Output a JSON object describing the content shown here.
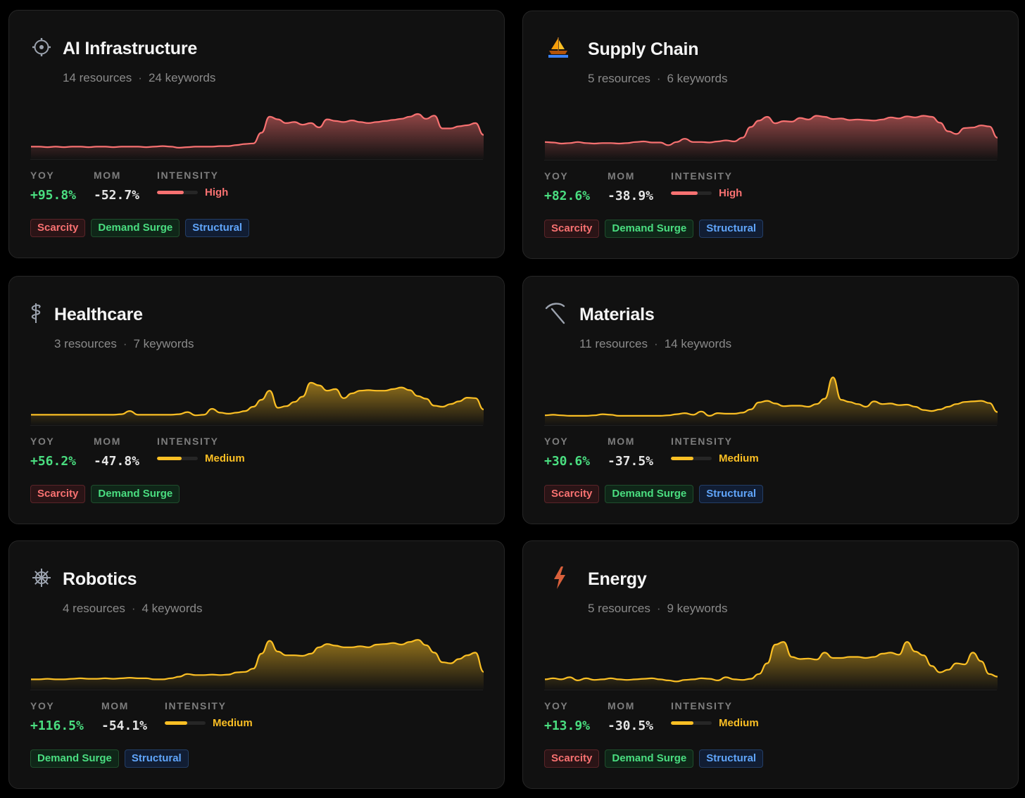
{
  "colors": {
    "high": "#f87171",
    "medium": "#fbbf24",
    "positive": "#4ade80"
  },
  "cards": [
    {
      "title": "AI Infrastructure",
      "icon": "gear-icon",
      "resources": "14 resources",
      "keywords": "24 keywords",
      "yoy_label": "YOY",
      "yoy": "+95.8%",
      "mom_label": "MOM",
      "mom": "-52.7%",
      "intensity_label": "INTENSITY",
      "intensity": "High",
      "intensity_level": 0.65,
      "tags": [
        "Scarcity",
        "Demand Surge",
        "Structural"
      ],
      "trend": [
        0.14,
        0.14,
        0.13,
        0.14,
        0.13,
        0.14,
        0.14,
        0.13,
        0.14,
        0.14,
        0.13,
        0.14,
        0.14,
        0.14,
        0.13,
        0.14,
        0.15,
        0.14,
        0.12,
        0.13,
        0.14,
        0.14,
        0.14,
        0.15,
        0.15,
        0.17,
        0.19,
        0.2,
        0.4,
        0.7,
        0.65,
        0.58,
        0.6,
        0.55,
        0.58,
        0.5,
        0.65,
        0.62,
        0.6,
        0.63,
        0.6,
        0.58,
        0.6,
        0.62,
        0.64,
        0.66,
        0.7,
        0.75,
        0.66,
        0.72,
        0.48,
        0.48,
        0.52,
        0.54,
        0.58,
        0.36
      ]
    },
    {
      "title": "Supply Chain",
      "icon": "sailboat-icon",
      "resources": "5 resources",
      "keywords": "6 keywords",
      "yoy_label": "YOY",
      "yoy": "+82.6%",
      "mom_label": "MOM",
      "mom": "-38.9%",
      "intensity_label": "INTENSITY",
      "intensity": "High",
      "intensity_level": 0.65,
      "tags": [
        "Scarcity",
        "Demand Surge",
        "Structural"
      ],
      "trend": [
        0.24,
        0.23,
        0.21,
        0.22,
        0.24,
        0.22,
        0.21,
        0.22,
        0.22,
        0.21,
        0.22,
        0.24,
        0.25,
        0.23,
        0.23,
        0.18,
        0.24,
        0.3,
        0.24,
        0.24,
        0.23,
        0.25,
        0.27,
        0.25,
        0.32,
        0.52,
        0.64,
        0.71,
        0.59,
        0.63,
        0.62,
        0.69,
        0.66,
        0.73,
        0.71,
        0.67,
        0.68,
        0.65,
        0.66,
        0.65,
        0.64,
        0.66,
        0.7,
        0.68,
        0.72,
        0.7,
        0.73,
        0.71,
        0.6,
        0.44,
        0.39,
        0.5,
        0.51,
        0.55,
        0.53,
        0.32
      ]
    },
    {
      "title": "Healthcare",
      "icon": "caduceus-icon",
      "resources": "3 resources",
      "keywords": "7 keywords",
      "yoy_label": "YOY",
      "yoy": "+56.2%",
      "mom_label": "MOM",
      "mom": "-47.8%",
      "intensity_label": "INTENSITY",
      "intensity": "Medium",
      "intensity_level": 0.6,
      "tags": [
        "Scarcity",
        "Demand Surge"
      ],
      "trend": [
        0.1,
        0.1,
        0.1,
        0.1,
        0.1,
        0.1,
        0.1,
        0.1,
        0.1,
        0.1,
        0.1,
        0.11,
        0.17,
        0.1,
        0.1,
        0.1,
        0.1,
        0.1,
        0.11,
        0.15,
        0.09,
        0.1,
        0.21,
        0.14,
        0.12,
        0.14,
        0.17,
        0.25,
        0.38,
        0.55,
        0.23,
        0.26,
        0.34,
        0.44,
        0.7,
        0.65,
        0.55,
        0.58,
        0.41,
        0.5,
        0.55,
        0.56,
        0.55,
        0.55,
        0.58,
        0.61,
        0.56,
        0.45,
        0.4,
        0.27,
        0.25,
        0.3,
        0.35,
        0.42,
        0.41,
        0.2
      ]
    },
    {
      "title": "Materials",
      "icon": "pickaxe-icon",
      "resources": "11 resources",
      "keywords": "14 keywords",
      "yoy_label": "YOY",
      "yoy": "+30.6%",
      "mom_label": "MOM",
      "mom": "-37.5%",
      "intensity_label": "INTENSITY",
      "intensity": "Medium",
      "intensity_level": 0.55,
      "tags": [
        "Scarcity",
        "Demand Surge",
        "Structural"
      ],
      "trend": [
        0.09,
        0.1,
        0.09,
        0.08,
        0.08,
        0.08,
        0.09,
        0.11,
        0.1,
        0.08,
        0.08,
        0.08,
        0.08,
        0.08,
        0.08,
        0.09,
        0.11,
        0.13,
        0.1,
        0.16,
        0.08,
        0.13,
        0.12,
        0.12,
        0.14,
        0.2,
        0.33,
        0.36,
        0.31,
        0.26,
        0.27,
        0.27,
        0.25,
        0.3,
        0.4,
        0.8,
        0.38,
        0.34,
        0.3,
        0.25,
        0.35,
        0.3,
        0.31,
        0.28,
        0.29,
        0.25,
        0.19,
        0.17,
        0.2,
        0.25,
        0.3,
        0.34,
        0.35,
        0.36,
        0.32,
        0.15
      ]
    },
    {
      "title": "Robotics",
      "icon": "helm-wheel-icon",
      "resources": "4 resources",
      "keywords": "4 keywords",
      "yoy_label": "YOY",
      "yoy": "+116.5%",
      "mom_label": "MOM",
      "mom": "-54.1%",
      "intensity_label": "INTENSITY",
      "intensity": "Medium",
      "intensity_level": 0.55,
      "tags": [
        "Demand Surge",
        "Structural"
      ],
      "trend": [
        0.1,
        0.1,
        0.11,
        0.1,
        0.1,
        0.11,
        0.12,
        0.11,
        0.11,
        0.12,
        0.11,
        0.12,
        0.13,
        0.12,
        0.12,
        0.1,
        0.1,
        0.12,
        0.15,
        0.2,
        0.18,
        0.18,
        0.19,
        0.18,
        0.19,
        0.23,
        0.24,
        0.3,
        0.58,
        0.82,
        0.62,
        0.55,
        0.55,
        0.54,
        0.58,
        0.7,
        0.76,
        0.73,
        0.7,
        0.7,
        0.72,
        0.7,
        0.75,
        0.76,
        0.78,
        0.75,
        0.8,
        0.84,
        0.74,
        0.6,
        0.42,
        0.4,
        0.48,
        0.55,
        0.6,
        0.24
      ]
    },
    {
      "title": "Energy",
      "icon": "lightning-icon",
      "resources": "5 resources",
      "keywords": "9 keywords",
      "yoy_label": "YOY",
      "yoy": "+13.9%",
      "mom_label": "MOM",
      "mom": "-30.5%",
      "intensity_label": "INTENSITY",
      "intensity": "Medium",
      "intensity_level": 0.55,
      "tags": [
        "Scarcity",
        "Demand Surge",
        "Structural"
      ],
      "trend": [
        0.1,
        0.12,
        0.1,
        0.14,
        0.08,
        0.12,
        0.09,
        0.1,
        0.12,
        0.1,
        0.09,
        0.1,
        0.11,
        0.12,
        0.1,
        0.08,
        0.06,
        0.09,
        0.1,
        0.12,
        0.11,
        0.08,
        0.14,
        0.1,
        0.09,
        0.11,
        0.2,
        0.4,
        0.75,
        0.8,
        0.52,
        0.48,
        0.49,
        0.47,
        0.6,
        0.5,
        0.5,
        0.52,
        0.52,
        0.5,
        0.52,
        0.58,
        0.6,
        0.56,
        0.8,
        0.62,
        0.55,
        0.35,
        0.23,
        0.28,
        0.4,
        0.38,
        0.6,
        0.44,
        0.2,
        0.15
      ]
    }
  ]
}
